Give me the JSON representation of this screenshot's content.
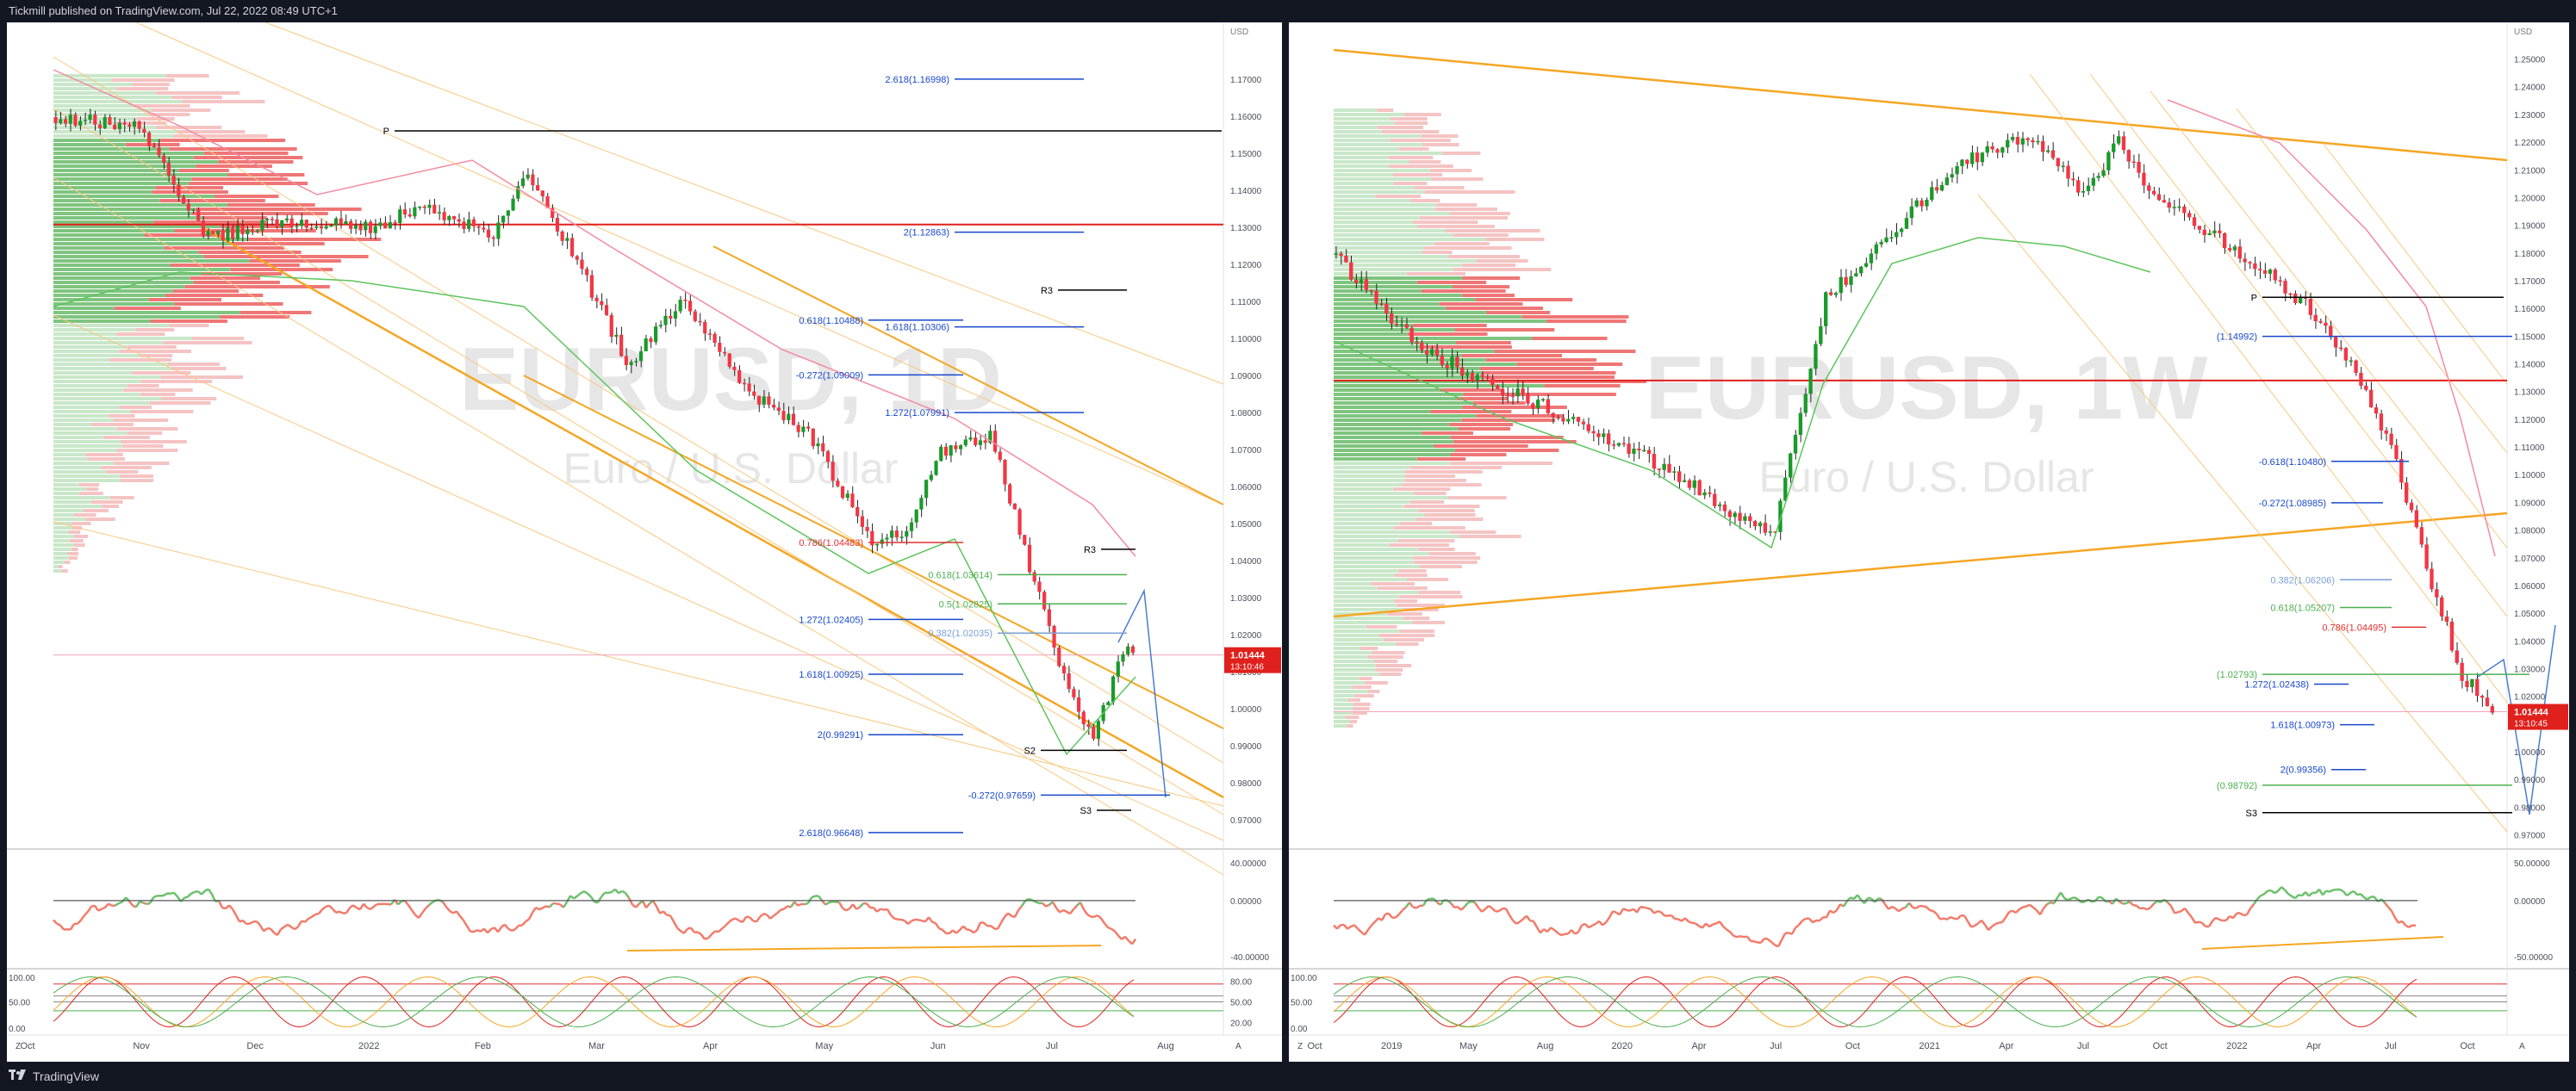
{
  "header": {
    "published": "Tickmill published on TradingView.com, Jul 22, 2022 08:49 UTC+1"
  },
  "footer": {
    "brand": "TradingView"
  },
  "chart_data": [
    {
      "type": "candlestick",
      "symbol_watermark": "EURUSD, 1D",
      "name_watermark": "Euro / U.S. Dollar",
      "currency": "USD",
      "price_axis": [
        1.17,
        1.16,
        1.15,
        1.14,
        1.13,
        1.12,
        1.11,
        1.1,
        1.09,
        1.08,
        1.07,
        1.06,
        1.05,
        1.04,
        1.03,
        1.02,
        1.01,
        1.0,
        0.99,
        0.98,
        0.97
      ],
      "price_labels": [
        "1.17000",
        "1.16000",
        "1.15000",
        "1.14000",
        "1.13000",
        "1.12000",
        "1.11000",
        "1.10000",
        "1.09000",
        "1.08000",
        "1.07000",
        "1.06000",
        "1.05000",
        "1.04000",
        "1.03000",
        "1.02000",
        "1.01000",
        "1.00000",
        "0.99000",
        "0.98000",
        "0.97000"
      ],
      "ylim": [
        0.9625,
        1.1825
      ],
      "last_price": "1.01444",
      "countdown": "13:10:46",
      "time_axis": [
        "Oct",
        "Nov",
        "Dec",
        "2022",
        "Feb",
        "Mar",
        "Apr",
        "May",
        "Jun",
        "Jul",
        "Aug"
      ],
      "levels": [
        {
          "label": "2.618(1.16998)",
          "price": 1.16998,
          "color": "#1848cc"
        },
        {
          "label": "P",
          "price": 1.156,
          "color": "#000000"
        },
        {
          "label": "2(1.12863)",
          "price": 1.12863,
          "color": "#1848cc"
        },
        {
          "label": "R3",
          "price": 1.113,
          "color": "#000000"
        },
        {
          "label": "0.618(1.10488)",
          "price": 1.10488,
          "color": "#1848cc"
        },
        {
          "label": "1.618(1.10306)",
          "price": 1.10306,
          "color": "#1848cc"
        },
        {
          "label": "-0.272(1.09009)",
          "price": 1.09009,
          "color": "#1848cc"
        },
        {
          "label": "1.272(1.07991)",
          "price": 1.07991,
          "color": "#1848cc"
        },
        {
          "label": "0.786(1.04483)",
          "price": 1.04483,
          "color": "#e03030"
        },
        {
          "label": "R3",
          "price": 1.043,
          "color": "#000000"
        },
        {
          "label": "0.618(1.03614)",
          "price": 1.03614,
          "color": "#4caf50"
        },
        {
          "label": "0.5(1.02825)",
          "price": 1.02825,
          "color": "#4caf50"
        },
        {
          "label": "1.272(1.02405)",
          "price": 1.02405,
          "color": "#1848cc"
        },
        {
          "label": "0.382(1.02035)",
          "price": 1.02035,
          "color": "#7b9fd6"
        },
        {
          "label": "1.618(1.00925)",
          "price": 1.00925,
          "color": "#1848cc"
        },
        {
          "label": "2(0.99291)",
          "price": 0.99291,
          "color": "#1848cc"
        },
        {
          "label": "S2",
          "price": 0.9887,
          "color": "#000000"
        },
        {
          "label": "-0.272(0.97659)",
          "price": 0.97659,
          "color": "#1848cc"
        },
        {
          "label": "S3",
          "price": 0.9725,
          "color": "#000000"
        },
        {
          "label": "2.618(0.96648)",
          "price": 0.96648,
          "color": "#1848cc"
        }
      ],
      "indicator1_axis": [
        "40.00000",
        "0.00000",
        "-40.00000"
      ],
      "indicator2_axis": [
        "100.00",
        "50.00",
        "0.00"
      ],
      "indicator2_right": [
        "80.00",
        "50.00",
        "20.00"
      ]
    },
    {
      "type": "candlestick",
      "symbol_watermark": "EURUSD, 1W",
      "name_watermark": "Euro / U.S. Dollar",
      "currency": "USD",
      "price_axis": [
        1.25,
        1.24,
        1.23,
        1.22,
        1.21,
        1.2,
        1.19,
        1.18,
        1.17,
        1.16,
        1.15,
        1.14,
        1.13,
        1.12,
        1.11,
        1.1,
        1.09,
        1.08,
        1.07,
        1.06,
        1.05,
        1.04,
        1.03,
        1.02,
        1.01,
        1.0,
        0.99,
        0.98,
        0.97
      ],
      "price_labels": [
        "1.25000",
        "1.24000",
        "1.23000",
        "1.22000",
        "1.21000",
        "1.20000",
        "1.19000",
        "1.18000",
        "1.17000",
        "1.16000",
        "1.15000",
        "1.14000",
        "1.13000",
        "1.12000",
        "1.11000",
        "1.10000",
        "1.09000",
        "1.08000",
        "1.07000",
        "1.06000",
        "1.05000",
        "1.04000",
        "1.03000",
        "1.02000",
        "1.01000",
        "1.00000",
        "0.99000",
        "0.98000",
        "0.97000"
      ],
      "ylim": [
        0.9655,
        1.2595
      ],
      "last_price": "1.01444",
      "countdown": "13:10:45",
      "time_axis": [
        "Oct",
        "2019",
        "May",
        "Aug",
        "2020",
        "Apr",
        "Jul",
        "Oct",
        "2021",
        "Apr",
        "Jul",
        "Oct",
        "2022",
        "Apr",
        "Jul",
        "Oct"
      ],
      "levels": [
        {
          "label": "P",
          "price": 1.164,
          "color": "#000000"
        },
        {
          "label": "(1.14992)",
          "price": 1.14992,
          "color": "#1848cc"
        },
        {
          "label": "-0.618(1.10480)",
          "price": 1.1048,
          "color": "#1848cc"
        },
        {
          "label": "-0.272(1.08985)",
          "price": 1.08985,
          "color": "#1848cc"
        },
        {
          "label": "0.382(1.06206)",
          "price": 1.06206,
          "color": "#7b9fd6"
        },
        {
          "label": "0.618(1.05207)",
          "price": 1.05207,
          "color": "#4caf50"
        },
        {
          "label": "0.786(1.04495)",
          "price": 1.04495,
          "color": "#e03030"
        },
        {
          "label": "(1.02793)",
          "price": 1.02793,
          "color": "#4caf50"
        },
        {
          "label": "1.272(1.02438)",
          "price": 1.02438,
          "color": "#1848cc"
        },
        {
          "label": "1.618(1.00973)",
          "price": 1.00973,
          "color": "#1848cc"
        },
        {
          "label": "2(0.99356)",
          "price": 0.99356,
          "color": "#1848cc"
        },
        {
          "label": "(0.98792)",
          "price": 0.98792,
          "color": "#4caf50"
        },
        {
          "label": "S3",
          "price": 0.978,
          "color": "#000000"
        }
      ],
      "indicator1_axis": [
        "50.00000",
        "0.00000",
        "-50.00000"
      ],
      "indicator2_axis": [
        "100.00",
        "50.00",
        "0.00"
      ]
    }
  ]
}
